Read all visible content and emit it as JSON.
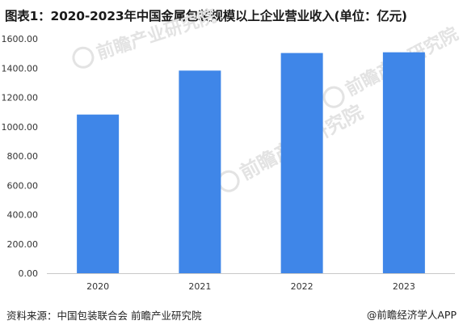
{
  "title": "图表1：2020-2023年中国金属包装规模以上企业营业收入(单位：亿元)",
  "source": "资料来源：中国包装联合会 前瞻产业研究院",
  "brand": "@前瞻经济学人APP",
  "watermark": {
    "text": "前瞻产业研究院",
    "icon": "qianzhan-logo-icon"
  },
  "colors": {
    "bar": "#3f86e8",
    "axis": "#c8c8c8",
    "tick_text": "#333333",
    "watermark": "#e3e3e3"
  },
  "chart_data": {
    "type": "bar",
    "title": "图表1：2020-2023年中国金属包装规模以上企业营业收入(单位：亿元)",
    "categories": [
      "2020",
      "2021",
      "2022",
      "2023"
    ],
    "values": [
      1083,
      1383,
      1503,
      1508
    ],
    "ylim": [
      0,
      1600
    ],
    "yticks": [
      "0.00",
      "200.00",
      "400.00",
      "600.00",
      "800.00",
      "1000.00",
      "1200.00",
      "1400.00",
      "1600.00"
    ],
    "grid": false,
    "legend": "none",
    "unit": "亿元"
  }
}
